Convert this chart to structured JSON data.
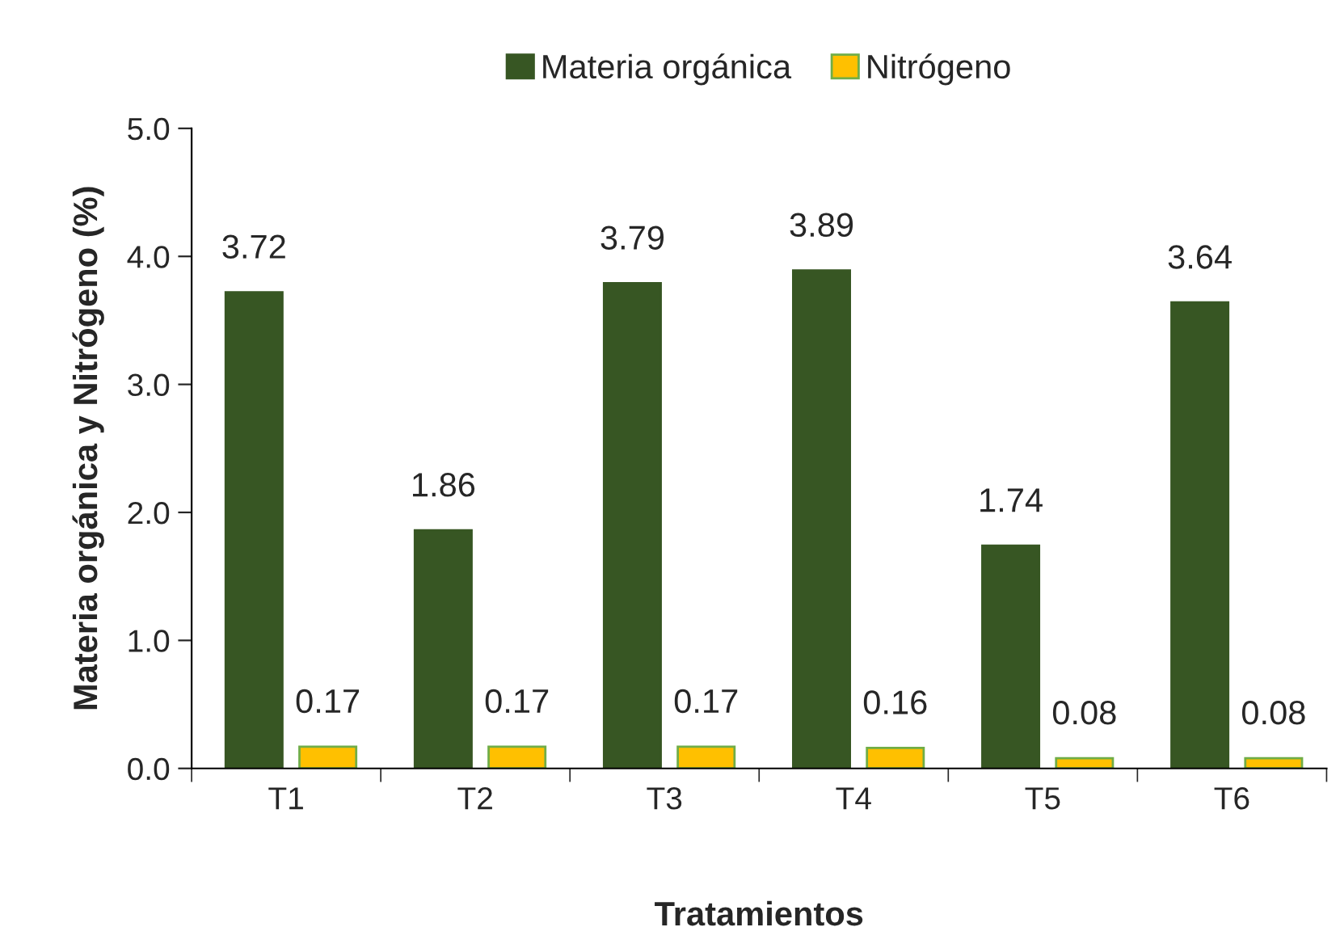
{
  "chart_data": {
    "type": "bar",
    "xlabel": "Tratamientos",
    "ylabel": "Materia orgánica y Nitrógeno (%)",
    "categories": [
      "T1",
      "T2",
      "T3",
      "T4",
      "T5",
      "T6"
    ],
    "series": [
      {
        "name": "Materia orgánica",
        "color": "#375623",
        "values": [
          3.72,
          1.86,
          3.79,
          3.89,
          1.74,
          3.64
        ],
        "value_labels": [
          "3.72",
          "1.86",
          "3.79",
          "3.89",
          "1.74",
          "3.64"
        ]
      },
      {
        "name": "Nitrógeno",
        "color": "#ffc000",
        "values": [
          0.17,
          0.17,
          0.17,
          0.16,
          0.08,
          0.08
        ],
        "value_labels": [
          "0.17",
          "0.17",
          "0.17",
          "0.16",
          "0.08",
          "0.08"
        ]
      }
    ],
    "ylim": [
      0,
      5
    ],
    "yticks": [
      {
        "value": 0,
        "label": "0.0"
      },
      {
        "value": 1,
        "label": "1.0"
      },
      {
        "value": 2,
        "label": "2.0"
      },
      {
        "value": 3,
        "label": "3.0"
      },
      {
        "value": 4,
        "label": "4.0"
      },
      {
        "value": 5,
        "label": "5.0"
      }
    ],
    "legend": "top",
    "grid": false
  }
}
